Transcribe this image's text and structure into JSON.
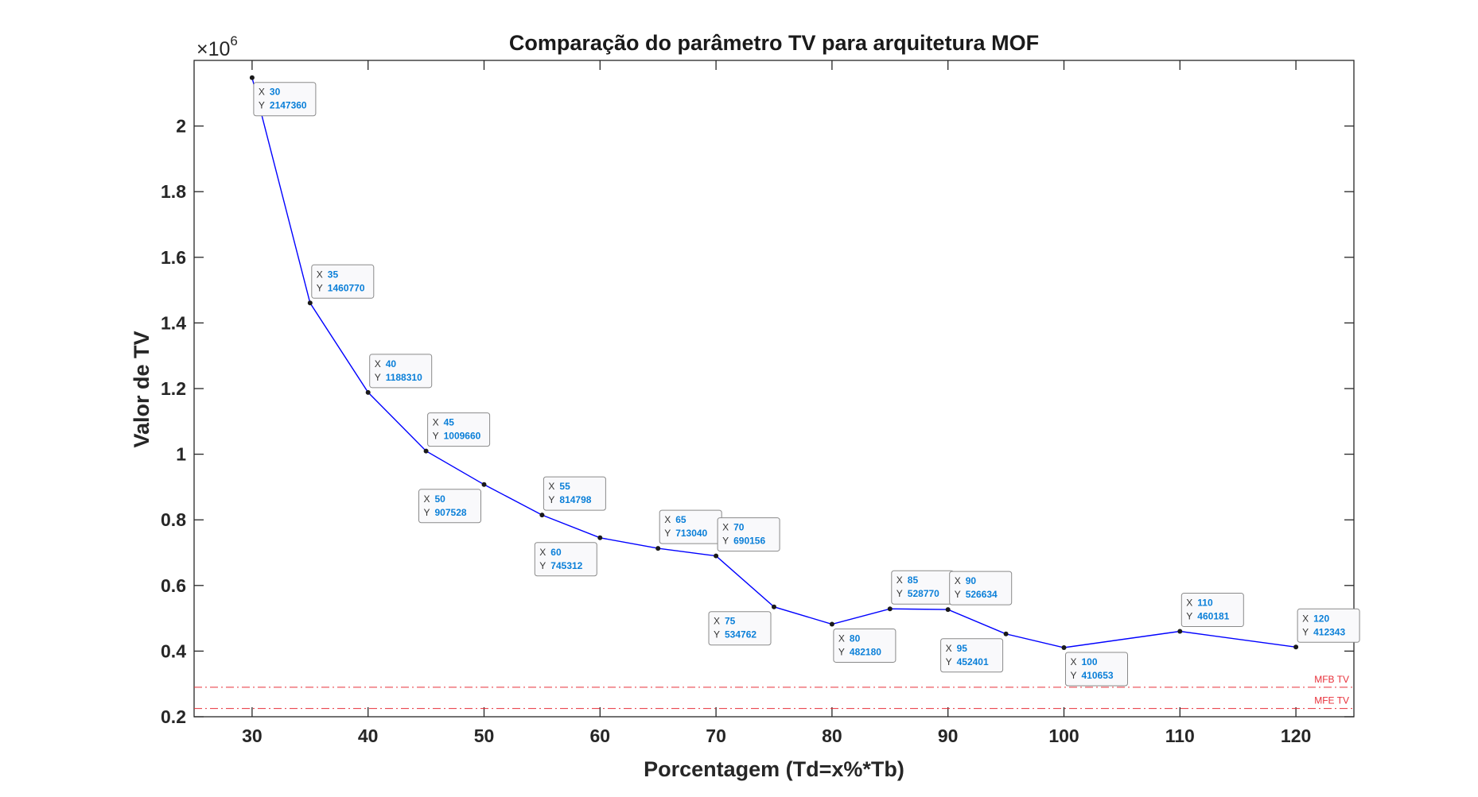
{
  "chart_data": {
    "type": "line",
    "title": "Comparação do parâmetro TV para arquitetura MOF",
    "xlabel": "Porcentagem (Td=x%*Tb)",
    "ylabel": "Valor de TV",
    "y_exponent_base": "×10",
    "y_exponent_power": "6",
    "xlim": [
      25,
      125
    ],
    "ylim": [
      0.2,
      2.2
    ],
    "x_ticks": [
      30,
      40,
      50,
      60,
      70,
      80,
      90,
      100,
      110,
      120
    ],
    "x_tick_labels": [
      "30",
      "40",
      "50",
      "60",
      "70",
      "80",
      "90",
      "100",
      "110",
      "120"
    ],
    "y_ticks": [
      0.2,
      0.4,
      0.6,
      0.8,
      1.0,
      1.2,
      1.4,
      1.6,
      1.8,
      2.0
    ],
    "y_tick_labels": [
      "0.2",
      "0.4",
      "0.6",
      "0.8",
      "1",
      "1.2",
      "1.4",
      "1.6",
      "1.8",
      "2"
    ],
    "grid": false,
    "series": [
      {
        "color": "#0000ff",
        "x": [
          30,
          35,
          40,
          45,
          50,
          55,
          60,
          65,
          70,
          75,
          80,
          85,
          90,
          95,
          100,
          110,
          120
        ],
        "y": [
          2147360,
          1460770,
          1188310,
          1009660,
          907528,
          814798,
          745312,
          713040,
          690156,
          534762,
          482180,
          528770,
          526634,
          452401,
          410653,
          460181,
          412343
        ]
      }
    ],
    "datatips": [
      {
        "x": "30",
        "y": "2147360",
        "position": "below-right"
      },
      {
        "x": "35",
        "y": "1460770",
        "position": "above-right"
      },
      {
        "x": "40",
        "y": "1188310",
        "position": "above-right"
      },
      {
        "x": "45",
        "y": "1009660",
        "position": "above-right"
      },
      {
        "x": "50",
        "y": "907528",
        "position": "below-left"
      },
      {
        "x": "55",
        "y": "814798",
        "position": "above-right"
      },
      {
        "x": "60",
        "y": "745312",
        "position": "below-left"
      },
      {
        "x": "65",
        "y": "713040",
        "position": "above-right"
      },
      {
        "x": "70",
        "y": "690156",
        "position": "above-right"
      },
      {
        "x": "75",
        "y": "534762",
        "position": "below-left"
      },
      {
        "x": "80",
        "y": "482180",
        "position": "below-right"
      },
      {
        "x": "85",
        "y": "528770",
        "position": "above-right"
      },
      {
        "x": "90",
        "y": "526634",
        "position": "above-right"
      },
      {
        "x": "95",
        "y": "452401",
        "position": "below-left"
      },
      {
        "x": "100",
        "y": "410653",
        "position": "below-right"
      },
      {
        "x": "110",
        "y": "460181",
        "position": "above-right"
      },
      {
        "x": "120",
        "y": "412343",
        "position": "above-right"
      }
    ],
    "reference_lines": [
      {
        "label": "MFB TV",
        "y": 290000,
        "color": "#e8303a",
        "style": "dash-dot"
      },
      {
        "label": "MFE TV",
        "y": 225000,
        "color": "#e8303a",
        "style": "dash-dot"
      }
    ],
    "tip_x_key": "X",
    "tip_y_key": "Y"
  }
}
